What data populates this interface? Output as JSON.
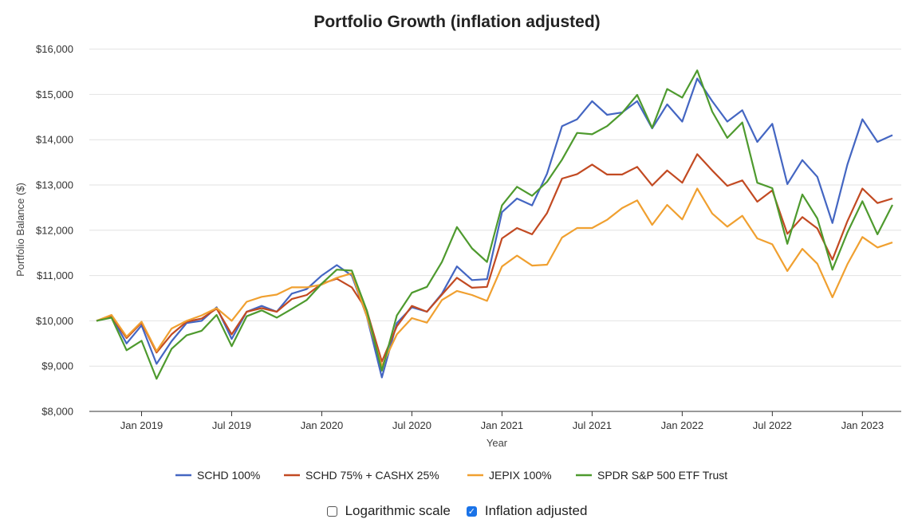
{
  "chart_data": {
    "type": "line",
    "title": "Portfolio Growth (inflation adjusted)",
    "xlabel": "Year",
    "ylabel": "Portfolio Balance ($)",
    "ylim": [
      8000,
      16200
    ],
    "yticks": [
      8000,
      9000,
      10000,
      11000,
      12000,
      13000,
      14000,
      15000,
      16000
    ],
    "ytick_labels": [
      "$8,000",
      "$9,000",
      "$10,000",
      "$11,000",
      "$12,000",
      "$13,000",
      "$14,000",
      "$15,000",
      "$16,000"
    ],
    "x_start_month": "Oct 2018",
    "x_end_month": "Feb 2023",
    "xticks": [
      {
        "label": "Jan 2019",
        "index": 3
      },
      {
        "label": "Jul 2019",
        "index": 9
      },
      {
        "label": "Jan 2020",
        "index": 15
      },
      {
        "label": "Jul 2020",
        "index": 21
      },
      {
        "label": "Jan 2021",
        "index": 27
      },
      {
        "label": "Jul 2021",
        "index": 33
      },
      {
        "label": "Jan 2022",
        "index": 39
      },
      {
        "label": "Jul 2022",
        "index": 45
      },
      {
        "label": "Jan 2023",
        "index": 51
      }
    ],
    "grid": true,
    "legend_position": "bottom",
    "series": [
      {
        "name": "SCHD 100%",
        "color": "#4466c2",
        "values": [
          10000,
          10100,
          9500,
          9900,
          9050,
          9550,
          9950,
          10000,
          10300,
          9600,
          10200,
          10330,
          10200,
          10600,
          10700,
          11000,
          11230,
          11000,
          10100,
          8750,
          9950,
          10300,
          10200,
          10600,
          11200,
          10900,
          10920,
          12400,
          12700,
          12550,
          13250,
          14300,
          14450,
          14850,
          14550,
          14600,
          14850,
          14250,
          14780,
          14400,
          15350,
          14850,
          14400,
          14650,
          13950,
          14350,
          13020,
          13550,
          13180,
          12160,
          13450,
          14450,
          13950,
          14100
        ]
      },
      {
        "name": "SCHD 75% + CASHX 25%",
        "color": "#c24a22",
        "values": [
          10000,
          10100,
          9620,
          9960,
          9300,
          9700,
          9980,
          10050,
          10270,
          9700,
          10200,
          10280,
          10200,
          10480,
          10570,
          10820,
          10930,
          10740,
          10230,
          9100,
          9880,
          10330,
          10200,
          10580,
          10950,
          10730,
          10750,
          11820,
          12050,
          11910,
          12380,
          13140,
          13240,
          13450,
          13230,
          13230,
          13400,
          12990,
          13320,
          13050,
          13680,
          13320,
          12980,
          13100,
          12630,
          12880,
          11920,
          12290,
          12040,
          11350,
          12200,
          12920,
          12600,
          12700
        ]
      },
      {
        "name": "JEPIX 100%",
        "color": "#f0a030",
        "values": [
          10000,
          10130,
          9650,
          9980,
          9330,
          9830,
          10000,
          10120,
          10280,
          10000,
          10420,
          10530,
          10580,
          10740,
          10740,
          10800,
          10950,
          11050,
          10100,
          9000,
          9700,
          10060,
          9960,
          10460,
          10660,
          10570,
          10440,
          11200,
          11440,
          11220,
          11240,
          11840,
          12050,
          12050,
          12230,
          12490,
          12660,
          12120,
          12560,
          12240,
          12920,
          12370,
          12080,
          12320,
          11820,
          11690,
          11100,
          11590,
          11260,
          10520,
          11250,
          11850,
          11620,
          11730
        ]
      },
      {
        "name": "SPDR S&P 500 ETF Trust",
        "color": "#4e9a2e",
        "values": [
          10000,
          10070,
          9350,
          9560,
          8720,
          9380,
          9680,
          9780,
          10130,
          9440,
          10100,
          10230,
          10070,
          10260,
          10460,
          10820,
          11130,
          11110,
          10230,
          8900,
          10120,
          10620,
          10750,
          11300,
          12070,
          11600,
          11300,
          12550,
          12960,
          12760,
          13070,
          13560,
          14150,
          14120,
          14300,
          14590,
          14990,
          14260,
          15120,
          14930,
          15530,
          14620,
          14040,
          14380,
          13050,
          12930,
          11700,
          12790,
          12260,
          11130,
          11950,
          12640,
          11910,
          12560
        ]
      }
    ]
  },
  "controls": {
    "log_scale": {
      "label": "Logarithmic scale",
      "checked": false
    },
    "inflation_adjusted": {
      "label": "Inflation adjusted",
      "checked": true
    }
  }
}
